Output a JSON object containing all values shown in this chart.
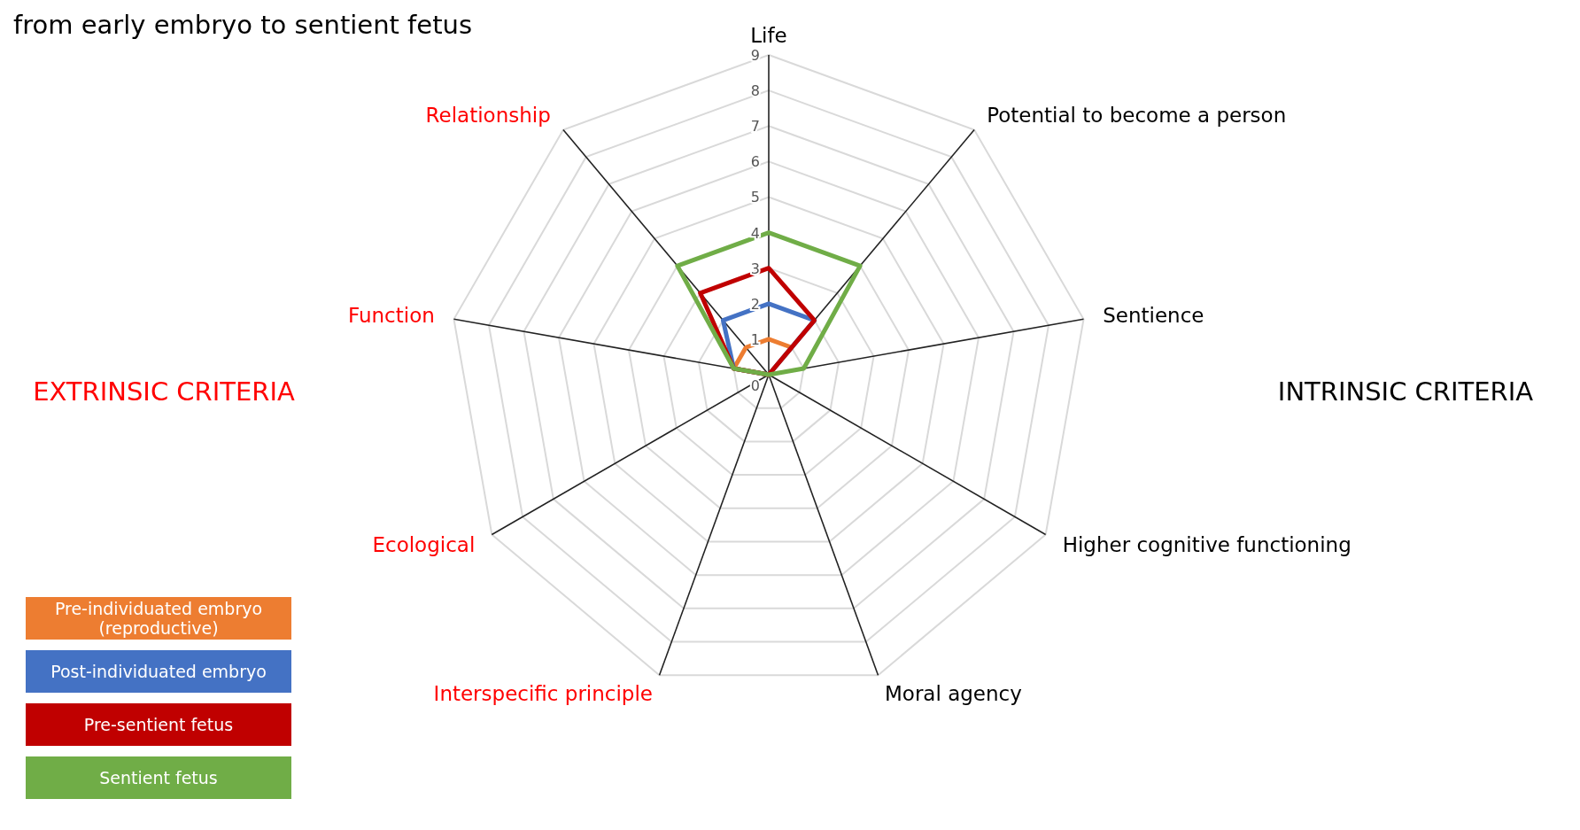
{
  "chart_data": {
    "type": "radar",
    "title": "from early embryo to sentient fetus",
    "categories": [
      "Life",
      "Potential to become a person",
      "Sentience",
      "Higher cognitive functioning",
      "Moral agency",
      "Interspecific principle",
      "Ecological",
      "Function",
      "Relationship"
    ],
    "series": [
      {
        "name": "Pre-individuated embryo (reproductive)",
        "color": "#ed7d31",
        "values": [
          1,
          1,
          0,
          0,
          0,
          0,
          0,
          1,
          1
        ]
      },
      {
        "name": "Post-individuated embryo",
        "color": "#4472c4",
        "values": [
          2,
          2,
          0,
          0,
          0,
          0,
          0,
          1,
          2
        ]
      },
      {
        "name": "Pre-sentient fetus",
        "color": "#c00000",
        "values": [
          3,
          2,
          0,
          0,
          0,
          0,
          0,
          1,
          3
        ]
      },
      {
        "name": "Sentient fetus",
        "color": "#70ad47",
        "values": [
          4,
          4,
          1,
          0,
          0,
          0,
          0,
          1,
          4
        ]
      }
    ],
    "ylim": [
      0,
      9
    ],
    "yticks": [
      0,
      1,
      2,
      3,
      4,
      5,
      6,
      7,
      8,
      9
    ],
    "grid": true,
    "legend": "bottom left",
    "annotations": [
      "EXTRINSIC CRITERIA",
      "INTRINSIC CRITERIA"
    ]
  }
}
